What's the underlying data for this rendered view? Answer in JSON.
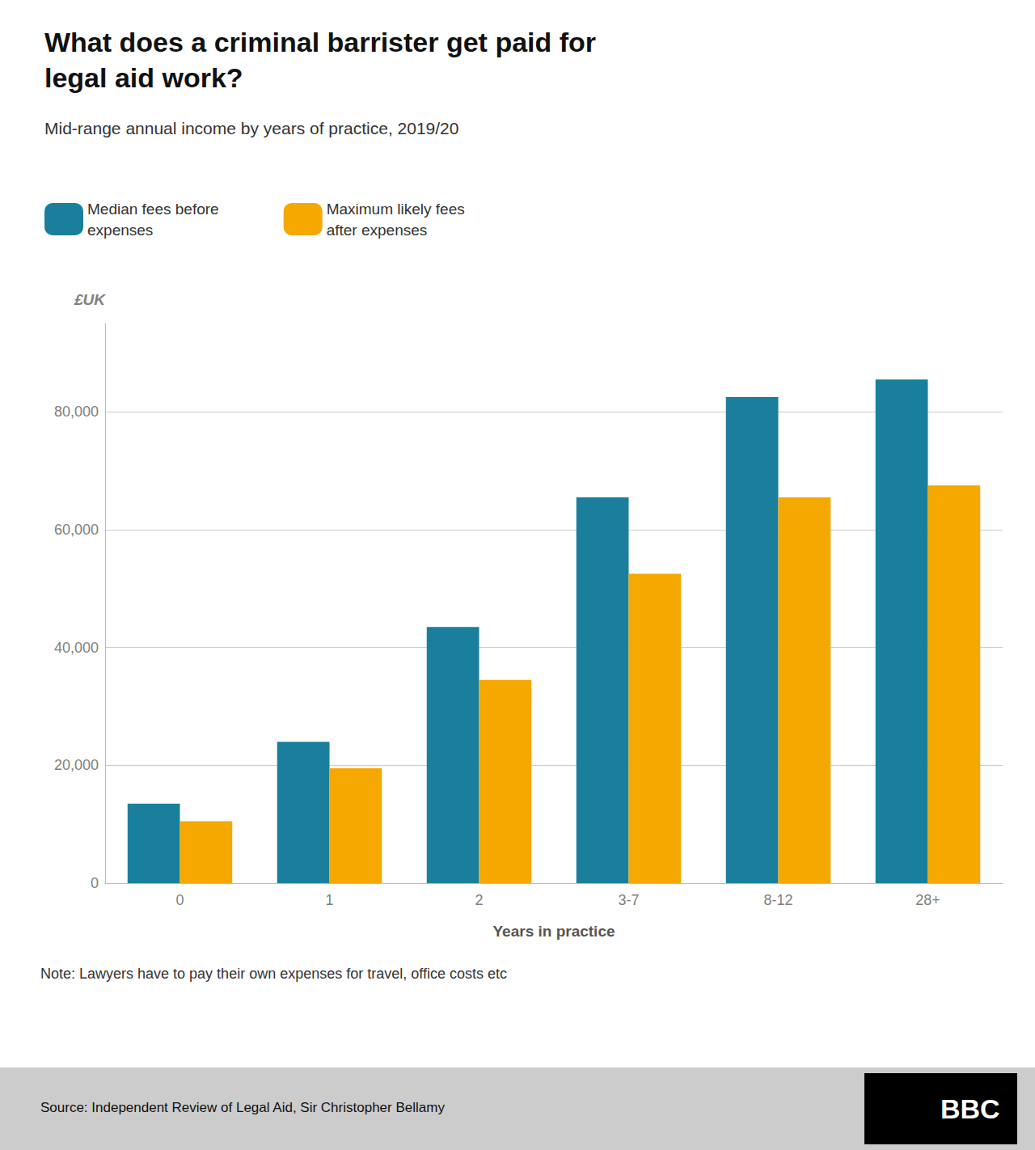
{
  "chart_data": {
    "type": "bar",
    "title": "What does a criminal barrister get paid for\nlegal aid work?",
    "subtitle": "Mid-range annual income by years of practice, 2019/20",
    "ylabel": "£UK",
    "xlabel": "Years in practice",
    "categories": [
      "0",
      "1",
      "2",
      "3-7",
      "8-12",
      "28+"
    ],
    "series": [
      {
        "name": "Median fees before\nexpenses",
        "color": "#1a7f9c",
        "values": [
          13500,
          24000,
          43500,
          65500,
          82500,
          85500
        ]
      },
      {
        "name": "Maximum likely fees\nafter expenses",
        "color": "#f5a800",
        "values": [
          10500,
          19500,
          34500,
          52500,
          65500,
          67500
        ]
      }
    ],
    "ylim": [
      0,
      95000
    ],
    "yticks": [
      0,
      {
        "value": 20000,
        "label": "20,000"
      },
      {
        "value": 40000,
        "label": "40,000"
      },
      {
        "value": 60000,
        "label": "60,000"
      },
      {
        "value": 80000,
        "label": "80,000"
      }
    ],
    "grid": true,
    "legend": "top",
    "note": "Note: Lawyers have to pay their own expenses for travel, office costs etc",
    "source": "Source: Independent Review of Legal Aid, Sir Christopher Bellamy",
    "logo": "BBC"
  }
}
